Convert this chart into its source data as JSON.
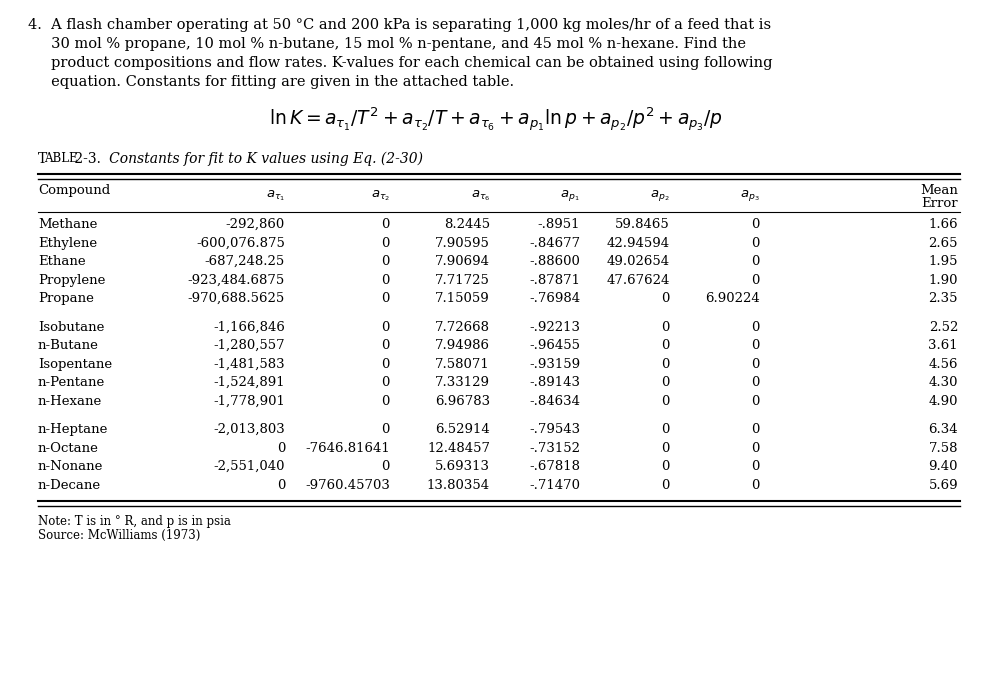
{
  "problem_text_lines": [
    "4.  A flash chamber operating at 50 °C and 200 kPa is separating 1,000 kg moles/hr of a feed that is",
    "     30 mol % propane, 10 mol % n-butane, 15 mol % n-pentane, and 45 mol % n-hexane. Find the",
    "     product compositions and flow rates. K-values for each chemical can be obtained using following",
    "     equation. Constants for fitting are given in the attached table."
  ],
  "table_title_1": "T",
  "table_title_2": "ABLE",
  "table_title_3": " 2-3.",
  "table_title_italic": "   Constants for fit to K values using Eq. (2-30)",
  "col_headers": [
    "Compound",
    "a_T1",
    "a_T2",
    "a_T6",
    "a_p1",
    "a_p2",
    "a_p3",
    "Mean\nError"
  ],
  "rows": [
    [
      "Methane",
      "-292,860",
      "0",
      "8.2445",
      "-.8951",
      "59.8465",
      "0",
      "1.66"
    ],
    [
      "Ethylene",
      "-600,076.875",
      "0",
      "7.90595",
      "-.84677",
      "42.94594",
      "0",
      "2.65"
    ],
    [
      "Ethane",
      "-687,248.25",
      "0",
      "7.90694",
      "-.88600",
      "49.02654",
      "0",
      "1.95"
    ],
    [
      "Propylene",
      "-923,484.6875",
      "0",
      "7.71725",
      "-.87871",
      "47.67624",
      "0",
      "1.90"
    ],
    [
      "Propane",
      "-970,688.5625",
      "0",
      "7.15059",
      "-.76984",
      "0",
      "6.90224",
      "2.35"
    ],
    [
      "Isobutane",
      "-1,166,846",
      "0",
      "7.72668",
      "-.92213",
      "0",
      "0",
      "2.52"
    ],
    [
      "n-Butane",
      "-1,280,557",
      "0",
      "7.94986",
      "-.96455",
      "0",
      "0",
      "3.61"
    ],
    [
      "Isopentane",
      "-1,481,583",
      "0",
      "7.58071",
      "-.93159",
      "0",
      "0",
      "4.56"
    ],
    [
      "n-Pentane",
      "-1,524,891",
      "0",
      "7.33129",
      "-.89143",
      "0",
      "0",
      "4.30"
    ],
    [
      "n-Hexane",
      "-1,778,901",
      "0",
      "6.96783",
      "-.84634",
      "0",
      "0",
      "4.90"
    ],
    [
      "n-Heptane",
      "-2,013,803",
      "0",
      "6.52914",
      "-.79543",
      "0",
      "0",
      "6.34"
    ],
    [
      "n-Octane",
      "0",
      "-7646.81641",
      "12.48457",
      "-.73152",
      "0",
      "0",
      "7.58"
    ],
    [
      "n-Nonane",
      "-2,551,040",
      "0",
      "5.69313",
      "-.67818",
      "0",
      "0",
      "9.40"
    ],
    [
      "n-Decane",
      "0",
      "-9760.45703",
      "13.80354",
      "-.71470",
      "0",
      "0",
      "5.69"
    ]
  ],
  "group_breaks": [
    5,
    10
  ],
  "note": "Note: T is in ° R, and p is in psia",
  "source": "Source: McWilliams (1973)",
  "bg_color": "#ffffff",
  "text_color": "#000000"
}
